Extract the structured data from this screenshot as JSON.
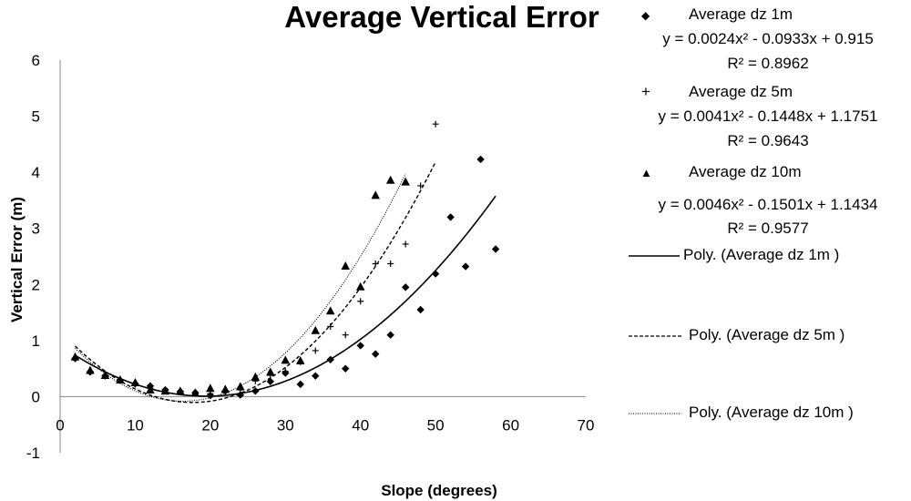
{
  "chart_data": {
    "type": "scatter",
    "title": "Average Vertical Error",
    "xlabel": "Slope (degrees)",
    "ylabel": "Vertical Error (m)",
    "xlim": [
      0,
      70
    ],
    "ylim": [
      -1,
      6
    ],
    "xticks": [
      0,
      10,
      20,
      30,
      40,
      50,
      60,
      70
    ],
    "yticks": [
      -1,
      0,
      1,
      2,
      3,
      4,
      5,
      6
    ],
    "grid": false,
    "legend_position": "right",
    "series": [
      {
        "name": "Average dz 1m",
        "marker": "diamond",
        "points": [
          [
            2,
            0.68
          ],
          [
            4,
            0.44
          ],
          [
            6,
            0.37
          ],
          [
            8,
            0.29
          ],
          [
            10,
            0.23
          ],
          [
            12,
            0.19
          ],
          [
            14,
            0.12
          ],
          [
            16,
            0.09
          ],
          [
            18,
            0.07
          ],
          [
            20,
            0.02
          ],
          [
            22,
            0.1
          ],
          [
            24,
            0.03
          ],
          [
            26,
            0.1
          ],
          [
            28,
            0.27
          ],
          [
            30,
            0.42
          ],
          [
            32,
            0.22
          ],
          [
            34,
            0.37
          ],
          [
            36,
            0.66
          ],
          [
            38,
            0.5
          ],
          [
            40,
            0.91
          ],
          [
            42,
            0.76
          ],
          [
            44,
            1.1
          ],
          [
            46,
            1.95
          ],
          [
            48,
            1.55
          ],
          [
            50,
            2.19
          ],
          [
            52,
            3.2
          ],
          [
            54,
            2.32
          ],
          [
            56,
            4.23
          ],
          [
            58,
            2.63
          ]
        ],
        "trendline": {
          "label": "Poly. (Average dz 1m )",
          "style": "solid",
          "equation": "y = 0.0024x² - 0.0933x + 0.915",
          "r2": "R² = 0.8962",
          "a": 0.0024,
          "b": -0.0933,
          "c": 0.915,
          "x_range": [
            2,
            58
          ]
        }
      },
      {
        "name": "Average dz 5m",
        "marker": "plus",
        "points": [
          [
            2,
            0.68
          ],
          [
            4,
            0.45
          ],
          [
            6,
            0.38
          ],
          [
            8,
            0.29
          ],
          [
            10,
            0.22
          ],
          [
            12,
            0.15
          ],
          [
            14,
            0.11
          ],
          [
            16,
            0.09
          ],
          [
            18,
            0.07
          ],
          [
            20,
            0.05
          ],
          [
            22,
            0.1
          ],
          [
            24,
            0.12
          ],
          [
            26,
            0.28
          ],
          [
            28,
            0.38
          ],
          [
            30,
            0.45
          ],
          [
            32,
            0.62
          ],
          [
            34,
            0.82
          ],
          [
            36,
            1.25
          ],
          [
            38,
            1.1
          ],
          [
            40,
            1.7
          ],
          [
            42,
            2.37
          ],
          [
            44,
            2.37
          ],
          [
            46,
            2.72
          ],
          [
            48,
            3.76
          ],
          [
            50,
            4.86
          ]
        ],
        "trendline": {
          "label": "Poly. (Average dz 5m )",
          "style": "dashed",
          "equation": "y = 0.0041x² - 0.1448x + 1.1751",
          "r2": "R² = 0.9643",
          "a": 0.0041,
          "b": -0.1448,
          "c": 1.1751,
          "x_range": [
            2,
            50
          ]
        }
      },
      {
        "name": "Average dz 10m",
        "marker": "triangle",
        "points": [
          [
            2,
            0.71
          ],
          [
            4,
            0.47
          ],
          [
            6,
            0.38
          ],
          [
            8,
            0.3
          ],
          [
            10,
            0.25
          ],
          [
            12,
            0.12
          ],
          [
            14,
            0.1
          ],
          [
            16,
            0.1
          ],
          [
            18,
            0.07
          ],
          [
            20,
            0.15
          ],
          [
            22,
            0.13
          ],
          [
            24,
            0.18
          ],
          [
            26,
            0.35
          ],
          [
            28,
            0.44
          ],
          [
            30,
            0.65
          ],
          [
            32,
            0.64
          ],
          [
            34,
            1.18
          ],
          [
            36,
            1.53
          ],
          [
            38,
            2.33
          ],
          [
            40,
            1.96
          ],
          [
            42,
            3.59
          ],
          [
            44,
            3.86
          ],
          [
            46,
            3.83
          ]
        ],
        "trendline": {
          "label": "Poly. (Average dz 10m )",
          "style": "dotted",
          "equation": "y = 0.0046x² - 0.1501x + 1.1434",
          "r2": "R² = 0.9577",
          "a": 0.0046,
          "b": -0.1501,
          "c": 1.1434,
          "x_range": [
            2,
            46
          ]
        }
      }
    ]
  },
  "legend": {
    "series_labels": [
      "Average dz 1m",
      "Average dz 5m",
      "Average dz 10m"
    ],
    "equations": [
      "y = 0.0024x² - 0.0933x + 0.915",
      "y = 0.0041x² - 0.1448x + 1.1751",
      "y = 0.0046x² - 0.1501x + 1.1434"
    ],
    "r2": [
      "R² = 0.8962",
      "R² = 0.9643",
      "R² = 0.9577"
    ],
    "trend_labels": [
      "Poly. (Average dz 1m )",
      "Poly. (Average dz 5m )",
      "Poly. (Average dz 10m )"
    ]
  },
  "symbols": {
    "diamond": "◆",
    "plus": "+",
    "triangle": "▲"
  }
}
